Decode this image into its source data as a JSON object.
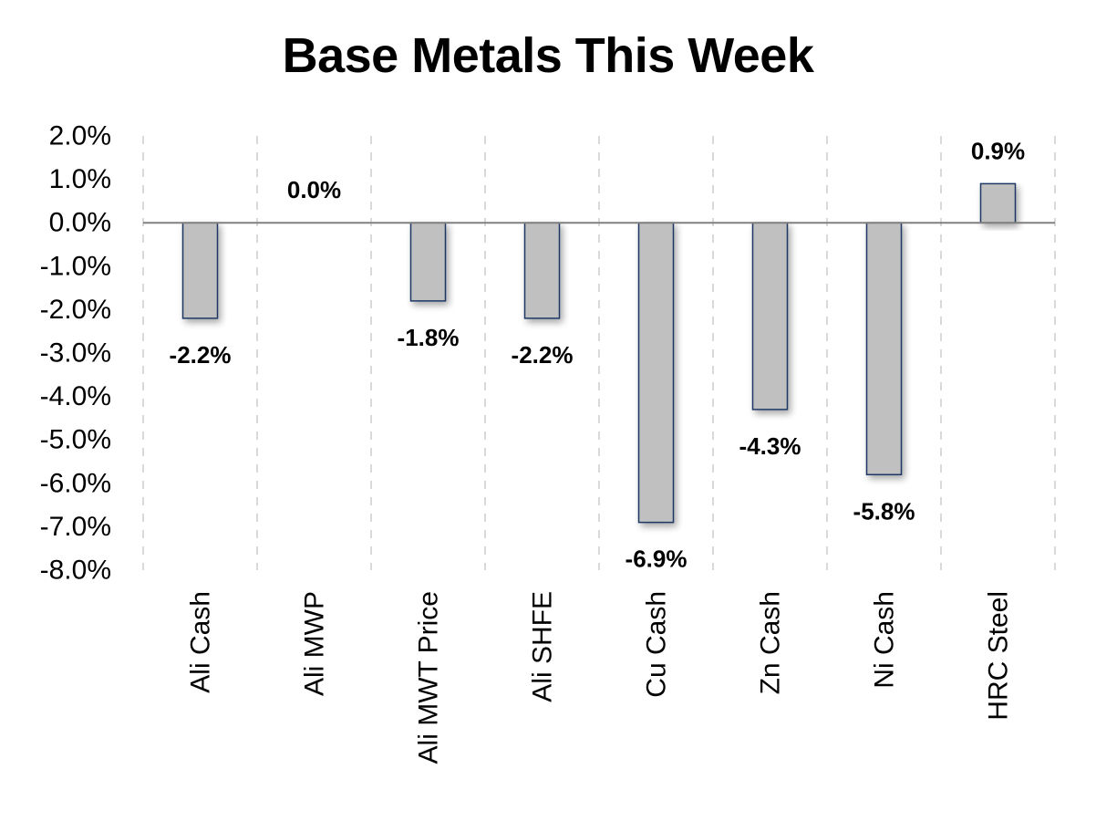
{
  "chart_data": {
    "type": "bar",
    "title": "Base Metals This Week",
    "categories": [
      "Ali Cash",
      "Ali MWP",
      "Ali MWT Price",
      "Ali SHFE",
      "Cu Cash",
      "Zn Cash",
      "Ni Cash",
      "HRC Steel"
    ],
    "values": [
      -2.2,
      0.0,
      -1.8,
      -2.2,
      -6.9,
      -4.3,
      -5.8,
      0.9
    ],
    "data_labels": [
      "-2.2%",
      "0.0%",
      "-1.8%",
      "-2.2%",
      "-6.9%",
      "-4.3%",
      "-5.8%",
      "0.9%"
    ],
    "y_ticks": [
      "2.0%",
      "1.0%",
      "0.0%",
      "-1.0%",
      "-2.0%",
      "-3.0%",
      "-4.0%",
      "-5.0%",
      "-6.0%",
      "-7.0%",
      "-8.0%"
    ],
    "ylim": [
      -8,
      2
    ],
    "xlabel": "",
    "ylabel": "",
    "grid": "vertical dashed",
    "legend": "none",
    "colors": {
      "bar_fill": "#c0c0c0",
      "bar_stroke": "#1f3864",
      "zero_line": "#808080",
      "grid": "#d9d9d9"
    }
  }
}
